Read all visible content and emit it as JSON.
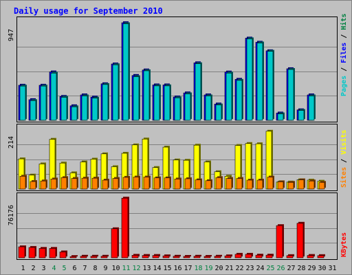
{
  "title": "Daily usage for September 2010",
  "colors": {
    "pages": "#00c8c8",
    "files": "#0000ff",
    "hits": "#008040",
    "visits": "#ffff00",
    "sites": "#ff8000",
    "kbytes": "#ff0000",
    "weekend": "#008040",
    "weekday": "#000000",
    "background": "#c0c0c0"
  },
  "side_labels": {
    "top": {
      "hits": "Hits",
      "files": "Files",
      "pages": "Pages",
      "sep": " / "
    },
    "middle": {
      "visits": "Visits",
      "sites": "Sites",
      "sep": " / "
    },
    "bottom": {
      "kbytes": "KBytes"
    }
  },
  "chart_data": [
    {
      "type": "bar",
      "panel": "top",
      "categories": [
        "1",
        "2",
        "3",
        "4",
        "5",
        "6",
        "7",
        "8",
        "9",
        "10",
        "11",
        "12",
        "13",
        "14",
        "15",
        "16",
        "17",
        "18",
        "19",
        "20",
        "21",
        "22",
        "23",
        "24",
        "25",
        "26",
        "27",
        "28",
        "29",
        "30",
        "31"
      ],
      "y_max_label": "947",
      "ylim": [
        0,
        947
      ],
      "series": [
        {
          "name": "Hits",
          "values": [
            0,
            0,
            0,
            0,
            0,
            0,
            0,
            0,
            0,
            0,
            0,
            0,
            0,
            0,
            0,
            0,
            0,
            0,
            0,
            0,
            0,
            0,
            0,
            0,
            0,
            0,
            0,
            0,
            0,
            0,
            0
          ]
        },
        {
          "name": "Files",
          "values": [
            338,
            199,
            338,
            466,
            230,
            140,
            245,
            224,
            352,
            543,
            940,
            432,
            485,
            341,
            341,
            225,
            264,
            554,
            245,
            157,
            465,
            395,
            792,
            752,
            670,
            70,
            497,
            101,
            245,
            0,
            0
          ]
        },
        {
          "name": "Pages",
          "values": [
            330,
            190,
            330,
            455,
            222,
            130,
            235,
            214,
            345,
            535,
            930,
            420,
            477,
            332,
            332,
            217,
            255,
            545,
            235,
            148,
            455,
            385,
            785,
            745,
            665,
            62,
            490,
            95,
            235,
            0,
            0
          ]
        }
      ],
      "weekend_days": [
        4,
        5,
        11,
        12,
        18,
        19,
        25,
        26
      ]
    },
    {
      "type": "bar",
      "panel": "middle",
      "categories": [
        "1",
        "2",
        "3",
        "4",
        "5",
        "6",
        "7",
        "8",
        "9",
        "10",
        "11",
        "12",
        "13",
        "14",
        "15",
        "16",
        "17",
        "18",
        "19",
        "20",
        "21",
        "22",
        "23",
        "24",
        "25",
        "26",
        "27",
        "28",
        "29",
        "30",
        "31"
      ],
      "y_max_label": "214",
      "ylim": [
        0,
        214
      ],
      "series": [
        {
          "name": "Visits",
          "values": [
            108,
            50,
            90,
            178,
            93,
            58,
            97,
            107,
            126,
            80,
            128,
            158,
            179,
            77,
            150,
            104,
            103,
            157,
            97,
            62,
            46,
            156,
            163,
            162,
            207,
            25,
            25,
            33,
            32,
            28,
            0
          ]
        },
        {
          "name": "Sites",
          "values": [
            46,
            27,
            29,
            36,
            41,
            38,
            39,
            39,
            32,
            38,
            42,
            43,
            43,
            40,
            40,
            36,
            37,
            33,
            30,
            41,
            38,
            38,
            32,
            32,
            43,
            26,
            24,
            33,
            29,
            24,
            0
          ]
        }
      ]
    },
    {
      "type": "bar",
      "panel": "bottom",
      "categories": [
        "1",
        "2",
        "3",
        "4",
        "5",
        "6",
        "7",
        "8",
        "9",
        "10",
        "11",
        "12",
        "13",
        "14",
        "15",
        "16",
        "17",
        "18",
        "19",
        "20",
        "21",
        "22",
        "23",
        "24",
        "25",
        "26",
        "27",
        "28",
        "29",
        "30",
        "31"
      ],
      "y_max_label": "76176",
      "ylim": [
        0,
        76176
      ],
      "series": [
        {
          "name": "KBytes",
          "values": [
            14000,
            13200,
            12000,
            12000,
            7500,
            1600,
            2000,
            2000,
            2000,
            37000,
            76000,
            3200,
            3000,
            3000,
            2500,
            2000,
            1800,
            2000,
            1800,
            2000,
            2500,
            4500,
            4500,
            3400,
            3400,
            41000,
            2800,
            44000,
            3000,
            2800,
            0
          ]
        }
      ]
    }
  ]
}
